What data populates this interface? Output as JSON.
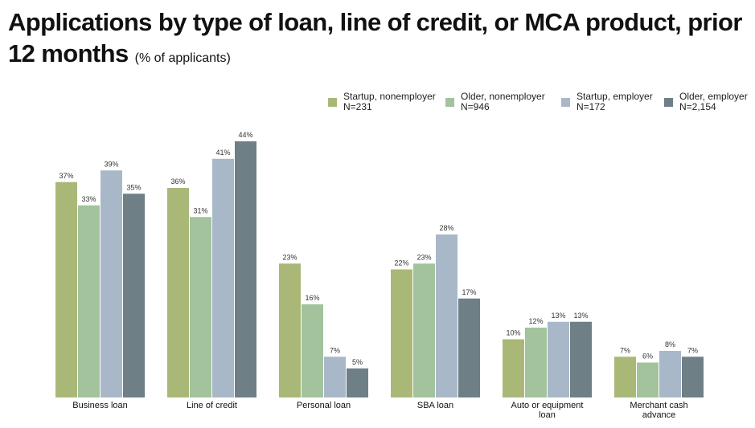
{
  "chart_data": {
    "type": "bar",
    "title": "Applications by type of loan, line of credit, or MCA product, prior 12 months",
    "subtitle": "(% of applicants)",
    "categories": [
      "Business loan",
      "Line of credit",
      "Personal loan",
      "SBA loan",
      "Auto or equipment loan",
      "Merchant cash advance"
    ],
    "category_lines": [
      [
        "Business loan"
      ],
      [
        "Line of credit"
      ],
      [
        "Personal loan"
      ],
      [
        "SBA loan"
      ],
      [
        "Auto or equipment",
        "loan"
      ],
      [
        "Merchant cash",
        "advance"
      ]
    ],
    "series": [
      {
        "name": "Startup, nonemployer",
        "n": "N=231",
        "color": "#aab877",
        "values": [
          37,
          36,
          23,
          22,
          10,
          7
        ]
      },
      {
        "name": "Older, nonemployer",
        "n": "N=946",
        "color": "#a2c39b",
        "values": [
          33,
          31,
          16,
          23,
          12,
          6
        ]
      },
      {
        "name": "Startup, employer",
        "n": "N=172",
        "color": "#a9b8c8",
        "values": [
          39,
          41,
          7,
          28,
          13,
          8
        ]
      },
      {
        "name": "Older, employer",
        "n": "N=2,154",
        "color": "#6e7f86",
        "values": [
          35,
          44,
          5,
          17,
          13,
          7
        ]
      }
    ],
    "value_suffix": "%",
    "xlabel": "",
    "ylabel": "",
    "ylim": [
      0,
      44
    ],
    "grid": false,
    "legend": "top-right"
  }
}
